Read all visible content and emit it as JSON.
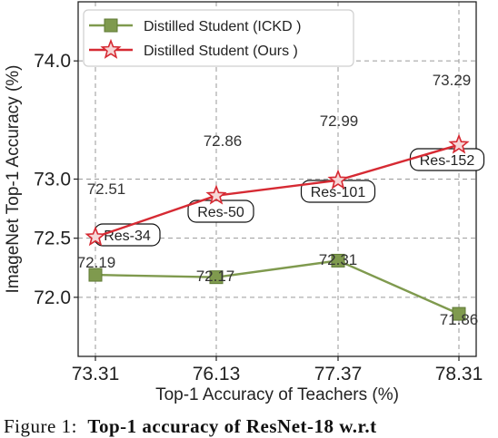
{
  "chart_data": {
    "type": "line",
    "categories": [
      "73.31",
      "76.13",
      "77.37",
      "78.31"
    ],
    "xlabel": "Top-1 Accuracy of Teachers (%)",
    "ylabel": "ImageNet Top-1 Accuracy (%)",
    "ylim": [
      71.5,
      74.5
    ],
    "yticks": [
      "72.0",
      "72.5",
      "73.0",
      "74.0"
    ],
    "ytick_values": [
      72.0,
      72.5,
      73.0,
      74.0
    ],
    "grid": true,
    "legend_position": "top-left",
    "series": [
      {
        "name": "Distilled Student (ICKD )",
        "marker": "square",
        "color": "#7f9a4e",
        "values": [
          72.19,
          72.17,
          72.31,
          71.86
        ],
        "labels": [
          "72.19",
          "72.17",
          "72.31",
          "71.86"
        ]
      },
      {
        "name": "Distilled Student (Ours )",
        "marker": "star",
        "color": "#d62a33",
        "values": [
          72.51,
          72.86,
          72.99,
          73.29
        ],
        "labels": [
          "72.51",
          "72.86",
          "72.99",
          "73.29"
        ]
      }
    ],
    "annotations": [
      "Res-34",
      "Res-50",
      "Res-101",
      "Res-152"
    ]
  },
  "caption": {
    "prefix": "Figure 1:",
    "bold": "Top-1 accuracy of ResNet-18 w.r.t"
  }
}
